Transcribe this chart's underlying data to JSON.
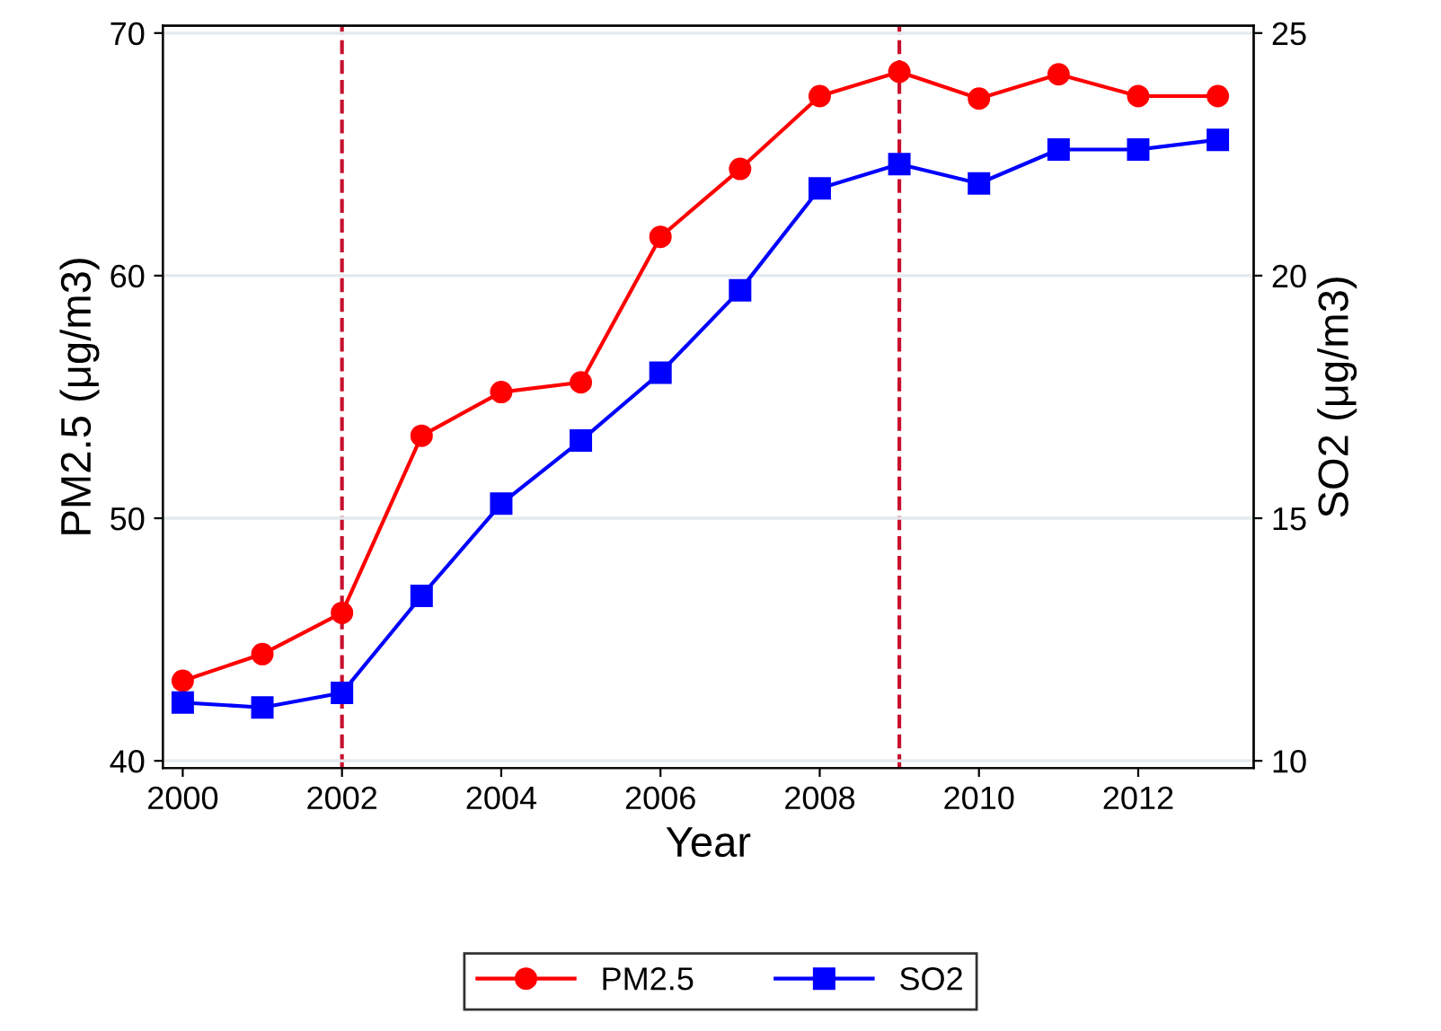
{
  "chart_data": {
    "type": "line",
    "xlabel": "Year",
    "ylabel": "PM2.5 (μg/m3)",
    "y2label": "SO2 (μg/m3)",
    "x": [
      2000,
      2001,
      2002,
      2003,
      2004,
      2005,
      2006,
      2007,
      2008,
      2009,
      2010,
      2011,
      2012,
      2013
    ],
    "series": [
      {
        "name": "PM2.5",
        "color": "#ff0000",
        "marker": "circle",
        "values": [
          43.3,
          44.4,
          46.1,
          53.4,
          55.2,
          55.6,
          61.6,
          64.4,
          67.4,
          68.4,
          67.3,
          68.3,
          67.4,
          67.4
        ]
      },
      {
        "name": "SO2",
        "color": "#0000ff",
        "marker": "square",
        "axis": "y2",
        "values": [
          11.2,
          11.1,
          11.4,
          13.4,
          15.3,
          16.6,
          18.0,
          19.7,
          21.8,
          22.3,
          21.9,
          22.6,
          22.6,
          22.8
        ]
      }
    ],
    "xlim": [
      1999.75,
      2013.45
    ],
    "xticks": [
      2000,
      2002,
      2004,
      2006,
      2008,
      2010,
      2012
    ],
    "ylim": [
      39.7,
      70.3
    ],
    "yticks": [
      40,
      50,
      60,
      70
    ],
    "y2lim": [
      9.85,
      25.15
    ],
    "y2ticks": [
      10,
      15,
      20,
      25
    ],
    "ref_lines": [
      {
        "axis": "x",
        "value": 2002,
        "color": "#c8102e",
        "line_style": "dashed"
      },
      {
        "axis": "x",
        "value": 2009,
        "color": "#c8102e",
        "line_style": "dashed"
      }
    ],
    "grid": "y",
    "legend": "bottom"
  }
}
